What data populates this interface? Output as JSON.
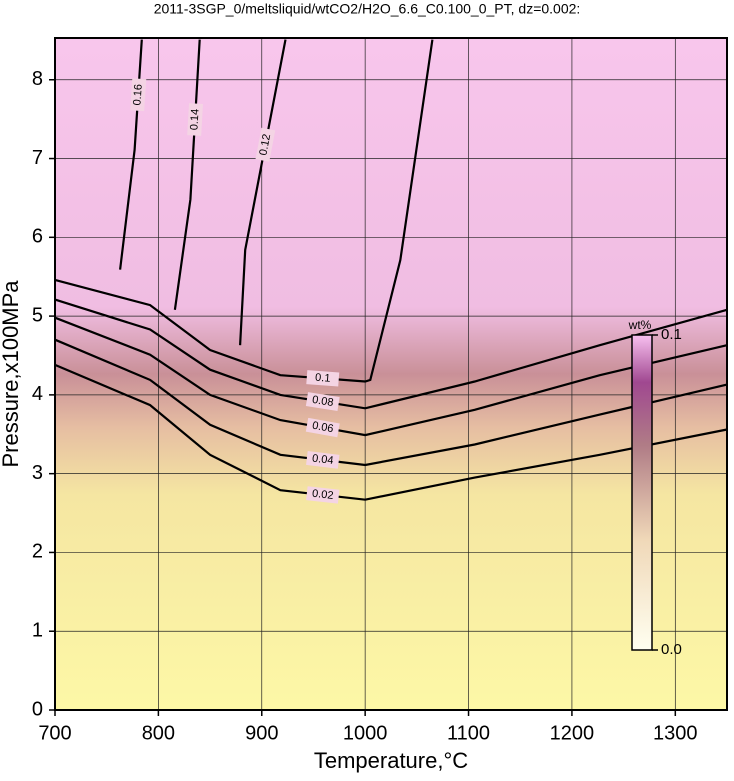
{
  "chart_data": {
    "type": "contour",
    "title": "2011-3SGP_0/meltsliquid/wtCO2/H2O_6.6_C0.100_0_PT, dz=0.002:",
    "xlabel": "Temperature,°C",
    "ylabel": "Pressure,x100MPa",
    "xlim": [
      700,
      1350
    ],
    "ylim": [
      0,
      8.53
    ],
    "xticks": [
      700,
      800,
      900,
      1000,
      1100,
      1200,
      1300
    ],
    "yticks": [
      0,
      1,
      2,
      3,
      4,
      5,
      6,
      7,
      8
    ],
    "grid": true,
    "series": [
      {
        "level": 0.02,
        "x": [
          700,
          792,
          850,
          918,
          1000,
          1106,
          1227,
          1350
        ],
        "y": [
          4.38,
          3.87,
          3.24,
          2.79,
          2.67,
          2.95,
          3.24,
          3.56
        ]
      },
      {
        "level": 0.04,
        "x": [
          700,
          792,
          850,
          918,
          1000,
          1106,
          1227,
          1350
        ],
        "y": [
          4.7,
          4.19,
          3.62,
          3.24,
          3.11,
          3.37,
          3.75,
          4.13
        ]
      },
      {
        "level": 0.06,
        "x": [
          700,
          792,
          850,
          918,
          1000,
          1106,
          1227,
          1350
        ],
        "y": [
          4.98,
          4.51,
          4.0,
          3.68,
          3.49,
          3.81,
          4.25,
          4.63
        ]
      },
      {
        "level": 0.08,
        "x": [
          700,
          792,
          850,
          918,
          1000,
          1106,
          1227,
          1350
        ],
        "y": [
          5.21,
          4.83,
          4.32,
          4.0,
          3.83,
          4.17,
          4.63,
          5.08
        ]
      },
      {
        "level": 0.1,
        "x": [
          700,
          792,
          850,
          918,
          1000,
          1005,
          1034,
          1065
        ],
        "y": [
          5.46,
          5.14,
          4.57,
          4.25,
          4.17,
          4.19,
          5.71,
          8.51
        ]
      },
      {
        "level": 0.12,
        "x": [
          879,
          884,
          923
        ],
        "y": [
          4.63,
          5.84,
          8.51
        ]
      },
      {
        "level": 0.14,
        "x": [
          816,
          831,
          840
        ],
        "y": [
          5.08,
          6.48,
          8.51
        ]
      },
      {
        "level": 0.16,
        "x": [
          763,
          777,
          784
        ],
        "y": [
          5.59,
          7.11,
          8.51
        ]
      }
    ],
    "colorbar": {
      "label": "wt%",
      "lim": [
        0,
        0.1
      ],
      "ticks": [
        {
          "value": 0,
          "label": "0.0"
        },
        {
          "value": 0.1,
          "label": "0.1"
        }
      ]
    }
  }
}
